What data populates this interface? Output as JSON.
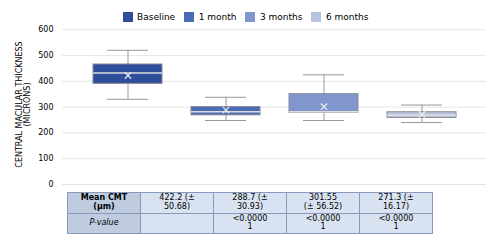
{
  "chart_data": {
    "type": "box",
    "ylabel": "CENTRAL MACULAR THICKNESS\n(MICRONS)",
    "categories": [
      "Baseline",
      "1 month",
      "3 months",
      "6 months"
    ],
    "colors": [
      "#2e4d9b",
      "#4a6cb5",
      "#8096cc",
      "#b8c4dd"
    ],
    "boxes": [
      {
        "q1": 390,
        "median": 432,
        "q3": 465,
        "whislo": 330,
        "whishi": 520,
        "mean": 422.2
      },
      {
        "q1": 268,
        "median": 282,
        "q3": 300,
        "whislo": 248,
        "whishi": 338,
        "mean": 288.7
      },
      {
        "q1": 278,
        "median": 282,
        "q3": 350,
        "whislo": 248,
        "whishi": 425,
        "mean": 301.55
      },
      {
        "q1": 258,
        "median": 268,
        "q3": 280,
        "whislo": 240,
        "whishi": 308,
        "mean": 271.3
      }
    ],
    "ylim": [
      0,
      620
    ],
    "yticks": [
      0,
      100,
      200,
      300,
      400,
      500,
      600
    ],
    "grid": true,
    "legend": "top",
    "tick_labels": "y",
    "table": [
      [
        "Mean CMT\n(μm)",
        "422.2 (±\n50.68)",
        "288.7 (±\n30.93)",
        "301.55\n(± 56.52)",
        "271.3 (±\n16.17)"
      ],
      [
        "P-value",
        null,
        "<0.0000\n1",
        "<0.0000\n1",
        "<0.0000\n1"
      ]
    ]
  }
}
